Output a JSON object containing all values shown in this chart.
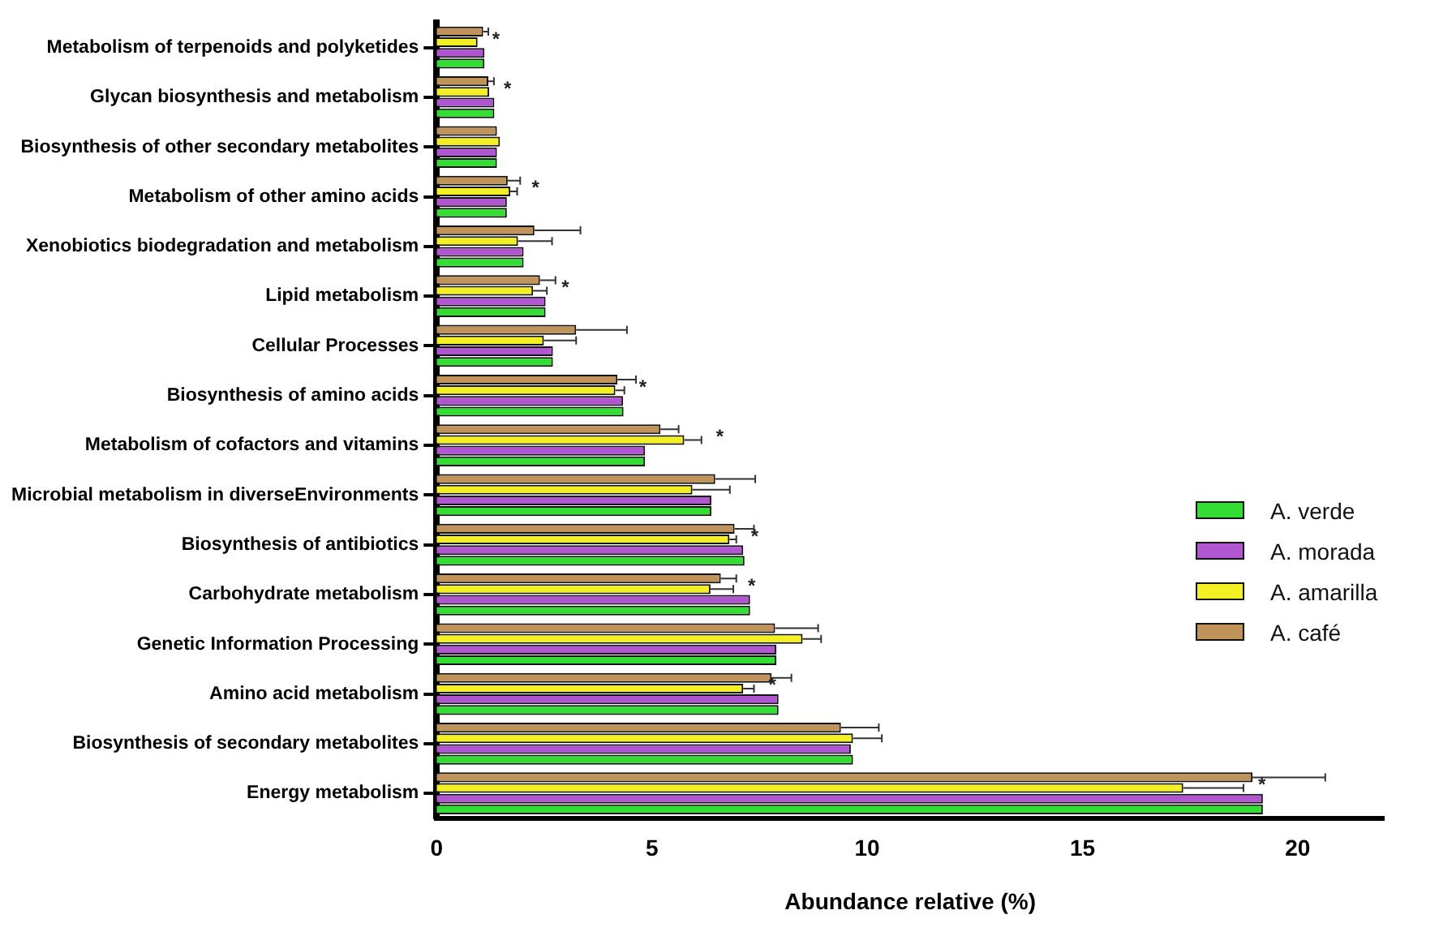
{
  "chart_data": {
    "type": "bar",
    "orientation": "horizontal",
    "xlabel": "Abundance relative (%)",
    "categories": [
      "Metabolism of terpenoids and polyketides",
      "Glycan biosynthesis and metabolism",
      "Biosynthesis of other secondary metabolites",
      "Metabolism of other amino acids",
      "Xenobiotics biodegradation and metabolism",
      "Lipid metabolism",
      "Cellular Processes",
      "Biosynthesis of amino acids",
      "Metabolism of cofactors and vitamins",
      "Microbial metabolism in diverseEnvironments",
      "Biosynthesis of antibiotics",
      "Carbohydrate metabolism",
      "Genetic Information Processing",
      "Amino acid metabolism",
      "Biosynthesis of secondary metabolites",
      "Energy metabolism"
    ],
    "series": [
      {
        "name": "A. verde",
        "color": "#33dd33",
        "values": [
          1.11,
          1.34,
          1.4,
          1.63,
          2.02,
          2.53,
          2.7,
          4.34,
          4.84,
          6.38,
          7.15,
          7.28,
          7.89,
          7.94,
          9.67,
          19.19
        ]
      },
      {
        "name": "A. morada",
        "color": "#b056d0",
        "values": [
          1.11,
          1.34,
          1.4,
          1.63,
          2.02,
          2.53,
          2.7,
          4.33,
          4.84,
          6.38,
          7.12,
          7.28,
          7.89,
          7.94,
          9.62,
          19.19
        ]
      },
      {
        "name": "A. amarilla",
        "color": "#f2f024",
        "values": [
          0.95,
          1.22,
          1.47,
          1.71,
          1.89,
          2.24,
          2.49,
          4.15,
          5.75,
          5.94,
          6.8,
          6.36,
          8.5,
          7.12,
          9.67,
          17.34
        ],
        "errors": [
          null,
          null,
          null,
          [
            1.71,
            1.87
          ],
          [
            1.89,
            2.68
          ],
          [
            2.24,
            2.56
          ],
          [
            2.49,
            3.24
          ],
          [
            4.15,
            4.36
          ],
          [
            5.75,
            6.15
          ],
          [
            5.94,
            6.81
          ],
          [
            6.8,
            6.96
          ],
          [
            6.36,
            6.89
          ],
          [
            8.5,
            8.93
          ],
          [
            7.12,
            7.37
          ],
          [
            9.67,
            10.34
          ],
          [
            17.34,
            18.74
          ]
        ]
      },
      {
        "name": "A. café",
        "color": "#c0935a",
        "values": [
          1.08,
          1.2,
          1.4,
          1.65,
          2.27,
          2.4,
          3.24,
          4.2,
          5.2,
          6.47,
          6.92,
          6.6,
          7.86,
          7.78,
          9.39,
          18.95
        ],
        "errors": [
          [
            1.08,
            1.2
          ],
          [
            1.2,
            1.33
          ],
          null,
          [
            1.65,
            1.94
          ],
          [
            2.27,
            3.34
          ],
          [
            2.4,
            2.76
          ],
          [
            3.24,
            4.42
          ],
          [
            4.2,
            4.63
          ],
          [
            5.2,
            5.62
          ],
          [
            6.47,
            7.4
          ],
          [
            6.92,
            7.37
          ],
          [
            6.6,
            6.96
          ],
          [
            7.86,
            8.86
          ],
          [
            7.78,
            8.24
          ],
          [
            9.39,
            10.27
          ],
          [
            18.95,
            20.64
          ]
        ]
      }
    ],
    "xlim": [
      0,
      22
    ],
    "xticks": [
      0,
      5,
      10,
      15,
      20
    ],
    "grid": false,
    "legend": "right",
    "annotations": [
      {
        "text": "*",
        "x": 0.95,
        "y": "Metabolism of terpenoids and polyketides"
      },
      {
        "text": "*",
        "x": 1.22,
        "y": "Glycan biosynthesis and metabolism"
      },
      {
        "text": "*",
        "x": 1.87,
        "y": "Metabolism of other amino acids"
      },
      {
        "text": "*",
        "x": 2.56,
        "y": "Lipid metabolism"
      },
      {
        "text": "*",
        "x": 4.36,
        "y": "Biosynthesis of amino acids"
      },
      {
        "text": "*",
        "x": 6.15,
        "y": "Metabolism of cofactors and vitamins"
      },
      {
        "text": "*",
        "x": 6.96,
        "y": "Biosynthesis of antibiotics"
      },
      {
        "text": "*",
        "x": 6.89,
        "y": "Carbohydrate metabolism"
      },
      {
        "text": "*",
        "x": 7.37,
        "y": "Amino acid metabolism"
      },
      {
        "text": "*",
        "x": 18.74,
        "y": "Energy metabolism"
      }
    ]
  }
}
